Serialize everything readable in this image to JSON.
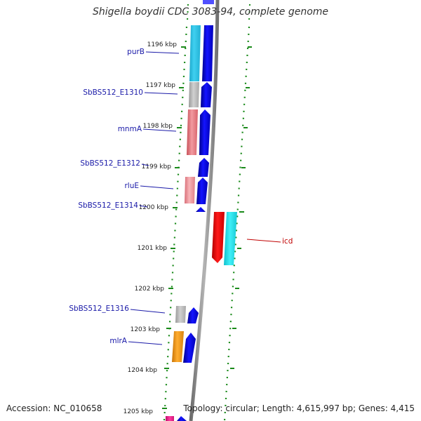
{
  "title": "Shigella boydii CDC 3083-94, complete genome",
  "footer": {
    "accession": "Accession: NC_010658",
    "summary": "Topology: circular; Length: 4,615,997 bp; Genes: 4,415"
  },
  "colors": {
    "background": "#ffffff",
    "backbone": "#8c8c8c",
    "dotted_track": "#1a8a1a",
    "plus_strand_arrow": "#0a0ae0",
    "label_plus": "#1a1aa8",
    "label_minus": "#c00000"
  },
  "ruler": {
    "unit": "kbp",
    "ticks": [
      "1196 kbp",
      "1197 kbp",
      "1198 kbp",
      "1199 kbp",
      "1200 kbp",
      "1201 kbp",
      "1202 kbp",
      "1203 kbp",
      "1204 kbp",
      "1205 kbp"
    ]
  },
  "genes": [
    {
      "label": "purB",
      "strand": "plus",
      "cog_color": "#33c8ec"
    },
    {
      "label": "SbBS512_E1310",
      "strand": "plus",
      "cog_color": "#b8b8b8"
    },
    {
      "label": "mnmA",
      "strand": "plus",
      "cog_color": "#e87a80"
    },
    {
      "label": "SbBS512_E1312",
      "strand": "plus",
      "cog_color": ""
    },
    {
      "label": "rluE",
      "strand": "plus",
      "cog_color": "#f09aa0"
    },
    {
      "label": "SbBS512_E1314",
      "strand": "plus",
      "cog_color": ""
    },
    {
      "label": "icd",
      "strand": "minus",
      "cog_color": "#29e0e8"
    },
    {
      "label": "SbBS512_E1316",
      "strand": "plus",
      "cog_color": "#c8c8c8"
    },
    {
      "label": "mlrA",
      "strand": "plus",
      "cog_color": "#f5a020"
    }
  ]
}
